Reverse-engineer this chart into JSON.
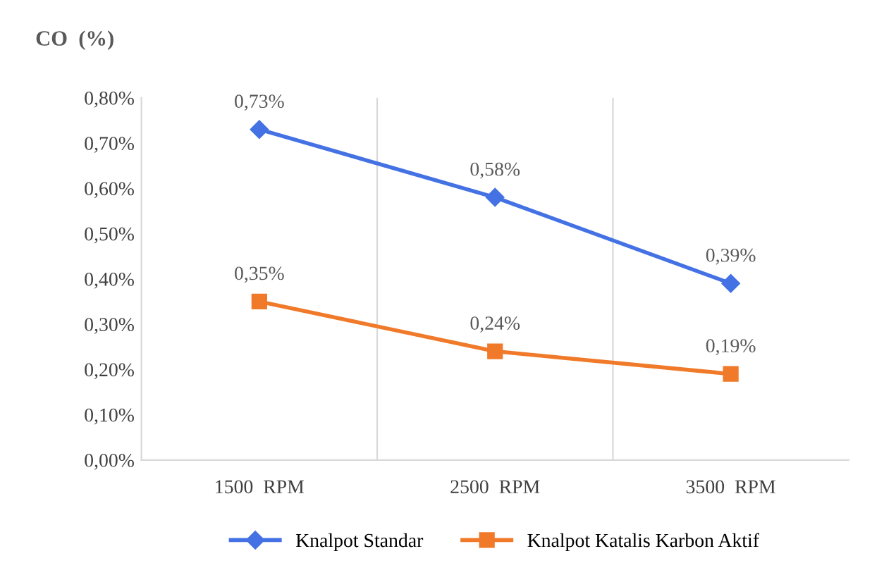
{
  "chart_data": {
    "type": "line",
    "ylabel": "CO  (%)",
    "categories": [
      "1500  RPM",
      "2500  RPM",
      "3500  RPM"
    ],
    "series": [
      {
        "name": "Knalpot Standar",
        "color": "#4472e4",
        "marker": "diamond",
        "values": [
          0.73,
          0.58,
          0.39
        ],
        "value_labels": [
          "0,73%",
          "0,58%",
          "0,39%"
        ]
      },
      {
        "name": "Knalpot Katalis Karbon Aktif",
        "color": "#f07a2a",
        "marker": "square",
        "values": [
          0.35,
          0.24,
          0.19
        ],
        "value_labels": [
          "0,35%",
          "0,24%",
          "0,19%"
        ]
      }
    ],
    "ylim": [
      0,
      0.8
    ],
    "yticks": [
      {
        "value": 0,
        "label": "0,00%"
      },
      {
        "value": 0.1,
        "label": "0,10%"
      },
      {
        "value": 0.2,
        "label": "0,20%"
      },
      {
        "value": 0.3,
        "label": "0,30%"
      },
      {
        "value": 0.4,
        "label": "0,40%"
      },
      {
        "value": 0.5,
        "label": "0,50%"
      },
      {
        "value": 0.6,
        "label": "0,60%"
      },
      {
        "value": 0.7,
        "label": "0,70%"
      },
      {
        "value": 0.8,
        "label": "0,80%"
      }
    ],
    "grid": "x",
    "legend": "bottom",
    "line_style": "solid"
  }
}
